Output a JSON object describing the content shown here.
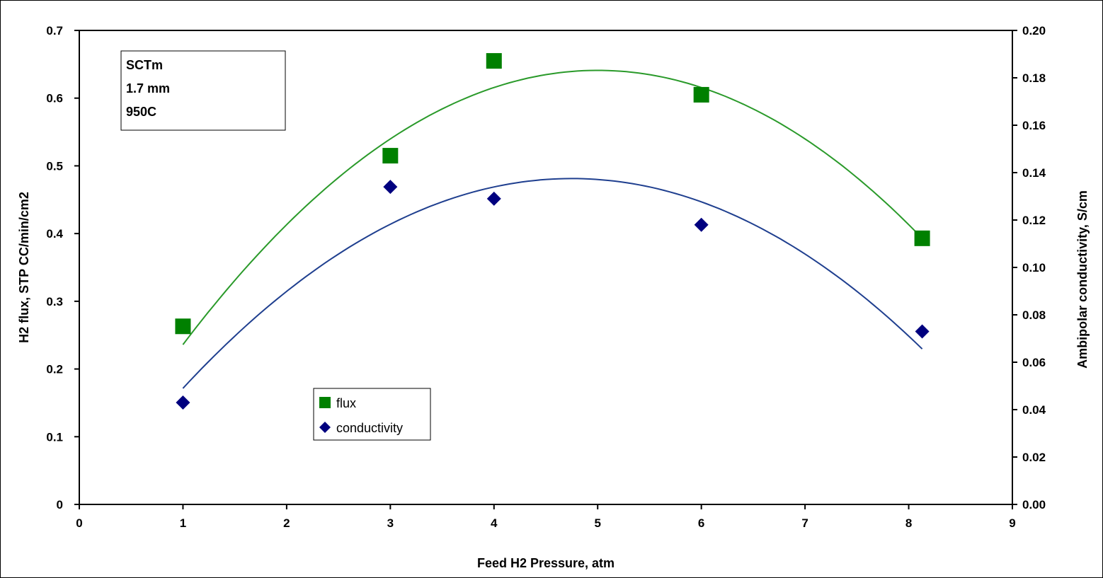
{
  "chart_data": {
    "type": "scatter",
    "xlabel": "Feed H2 Pressure, atm",
    "ylabel": "H2 flux, STP CC/min/cm2",
    "y2label": "Ambipolar conductivity, S/cm",
    "xlim": [
      0,
      9
    ],
    "ylim": [
      0,
      0.7
    ],
    "y2lim": [
      0,
      0.2
    ],
    "x_ticks": [
      "0",
      "1",
      "2",
      "3",
      "4",
      "5",
      "6",
      "7",
      "8",
      "9"
    ],
    "y_ticks": [
      "0",
      "0.1",
      "0.2",
      "0.3",
      "0.4",
      "0.5",
      "0.6",
      "0.7"
    ],
    "y2_ticks": [
      "0.00",
      "0.02",
      "0.04",
      "0.06",
      "0.08",
      "0.10",
      "0.12",
      "0.14",
      "0.16",
      "0.18",
      "0.20"
    ],
    "grid": false,
    "legend_position": "lower-left",
    "annotation": [
      "SCTm",
      "1.7 mm",
      "950C"
    ],
    "series": [
      {
        "name": "flux",
        "axis": "left",
        "marker": "square",
        "color": "#008000",
        "x": [
          1,
          3,
          4,
          6,
          8.13
        ],
        "y": [
          0.263,
          0.515,
          0.655,
          0.605,
          0.393
        ],
        "trendline": {
          "type": "poly2",
          "from": 1,
          "to": 8.13,
          "peak_x": 5,
          "peak_y": 0.641,
          "end_y": 0.393
        }
      },
      {
        "name": "conductivity",
        "axis": "right",
        "marker": "diamond",
        "color": "#00007f",
        "x": [
          1,
          3,
          4,
          6,
          8.13
        ],
        "y": [
          0.043,
          0.134,
          0.129,
          0.118,
          0.073
        ],
        "trendline": {
          "type": "poly2",
          "from": 1,
          "to": 8.13,
          "peak_x": 4.75,
          "peak_y": 0.1375,
          "start_y": 0.049
        }
      }
    ]
  },
  "colors": {
    "flux_line": "#2a9a2a",
    "conductivity_line": "#1f3f8f",
    "frame": "#000000"
  }
}
